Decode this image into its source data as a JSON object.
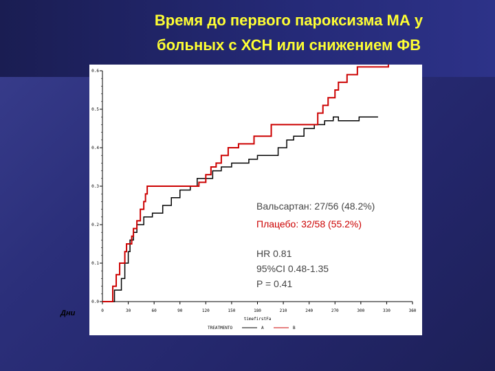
{
  "slide": {
    "title_line1": "Время до первого пароксизма МА у",
    "title_line2": "больных с ХСН или снижением ФВ",
    "days_label": "Дни"
  },
  "annotation": {
    "valsartan": "Вальсартан: 27/56 (48.2%)",
    "placebo": "Плацебо: 32/58 (55.2%)",
    "hr": "HR 0.81",
    "ci": "95%CI 0.48-1.35",
    "p": "P = 0.41",
    "valsartan_color": "#444444",
    "placebo_color": "#cc0000"
  },
  "chart_data": {
    "type": "line",
    "line_shape": "step",
    "xlabel": "timefirstFa",
    "ylabel": "",
    "xlim": [
      0,
      360
    ],
    "ylim": [
      0,
      0.6
    ],
    "x_ticks": [
      0,
      30,
      60,
      90,
      120,
      150,
      180,
      210,
      240,
      270,
      300,
      330,
      360
    ],
    "y_ticks": [
      0.0,
      0.1,
      0.2,
      0.3,
      0.4,
      0.5,
      0.6
    ],
    "y_tick_labels": [
      "0.0",
      "0.1",
      "0.2",
      "0.3",
      "0.4",
      "0.5",
      "0.6"
    ],
    "legend_title": "TREATMENTO",
    "legend_position": "bottom",
    "series": [
      {
        "name": "A",
        "color": "#000000",
        "x": [
          0,
          14,
          22,
          26,
          30,
          32,
          36,
          40,
          48,
          58,
          70,
          80,
          90,
          102,
          110,
          128,
          138,
          150,
          160,
          170,
          180,
          196,
          204,
          214,
          222,
          234,
          246,
          252,
          258,
          268,
          274,
          298,
          318,
          320
        ],
        "y": [
          0,
          0.03,
          0.06,
          0.1,
          0.13,
          0.16,
          0.18,
          0.2,
          0.22,
          0.23,
          0.25,
          0.27,
          0.29,
          0.3,
          0.32,
          0.34,
          0.35,
          0.36,
          0.36,
          0.37,
          0.38,
          0.38,
          0.4,
          0.42,
          0.43,
          0.45,
          0.46,
          0.46,
          0.47,
          0.48,
          0.47,
          0.48,
          0.48,
          0.48
        ]
      },
      {
        "name": "B",
        "color": "#cc0000",
        "x": [
          0,
          12,
          16,
          20,
          26,
          28,
          34,
          36,
          40,
          44,
          48,
          50,
          52,
          56,
          60,
          70,
          84,
          100,
          112,
          120,
          126,
          132,
          138,
          146,
          158,
          176,
          196,
          214,
          226,
          250,
          256,
          262,
          270,
          274,
          284,
          296,
          320,
          332
        ],
        "y": [
          0,
          0.04,
          0.07,
          0.1,
          0.13,
          0.15,
          0.17,
          0.19,
          0.21,
          0.24,
          0.26,
          0.28,
          0.3,
          0.3,
          0.3,
          0.3,
          0.3,
          0.3,
          0.31,
          0.33,
          0.35,
          0.36,
          0.38,
          0.4,
          0.41,
          0.43,
          0.46,
          0.46,
          0.46,
          0.49,
          0.51,
          0.53,
          0.55,
          0.57,
          0.59,
          0.61,
          0.61,
          0.63
        ]
      }
    ]
  }
}
